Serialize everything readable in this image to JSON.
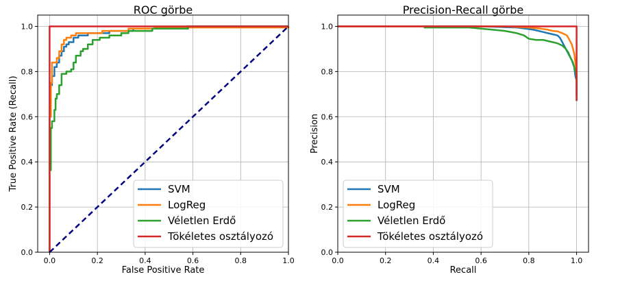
{
  "chart_data": [
    {
      "type": "line",
      "title": "ROC görbe",
      "xlabel": "False Positive Rate",
      "ylabel": "True Positive Rate (Recall)",
      "xlim": [
        -0.05,
        1.0
      ],
      "ylim": [
        0,
        1.05
      ],
      "xticks": [
        "0.0",
        "0.2",
        "0.4",
        "0.6",
        "0.8",
        "1.0"
      ],
      "yticks": [
        "0.0",
        "0.2",
        "0.4",
        "0.6",
        "0.8",
        "1.0"
      ],
      "grid": true,
      "legend_position": "lower-right",
      "series": [
        {
          "name": "SVM",
          "color": "#1f77b4",
          "points": [
            [
              0,
              0
            ],
            [
              0,
              0.6
            ],
            [
              0.005,
              0.6
            ],
            [
              0.005,
              0.74
            ],
            [
              0.01,
              0.74
            ],
            [
              0.01,
              0.78
            ],
            [
              0.02,
              0.78
            ],
            [
              0.02,
              0.82
            ],
            [
              0.03,
              0.82
            ],
            [
              0.03,
              0.84
            ],
            [
              0.04,
              0.84
            ],
            [
              0.04,
              0.87
            ],
            [
              0.05,
              0.87
            ],
            [
              0.05,
              0.89
            ],
            [
              0.06,
              0.89
            ],
            [
              0.06,
              0.91
            ],
            [
              0.07,
              0.91
            ],
            [
              0.07,
              0.92
            ],
            [
              0.08,
              0.92
            ],
            [
              0.08,
              0.93
            ],
            [
              0.1,
              0.93
            ],
            [
              0.1,
              0.95
            ],
            [
              0.12,
              0.95
            ],
            [
              0.12,
              0.96
            ],
            [
              0.16,
              0.96
            ],
            [
              0.16,
              0.97
            ],
            [
              0.25,
              0.97
            ],
            [
              0.25,
              0.98
            ],
            [
              0.35,
              0.98
            ],
            [
              0.35,
              0.99
            ],
            [
              0.57,
              0.99
            ],
            [
              0.57,
              1.0
            ],
            [
              1.0,
              1.0
            ]
          ]
        },
        {
          "name": "LogReg",
          "color": "#ff7f0e",
          "points": [
            [
              0,
              0
            ],
            [
              0,
              0.6
            ],
            [
              0.005,
              0.6
            ],
            [
              0.005,
              0.75
            ],
            [
              0.01,
              0.75
            ],
            [
              0.01,
              0.84
            ],
            [
              0.03,
              0.84
            ],
            [
              0.03,
              0.86
            ],
            [
              0.04,
              0.86
            ],
            [
              0.04,
              0.89
            ],
            [
              0.05,
              0.89
            ],
            [
              0.05,
              0.92
            ],
            [
              0.06,
              0.92
            ],
            [
              0.06,
              0.94
            ],
            [
              0.07,
              0.94
            ],
            [
              0.07,
              0.95
            ],
            [
              0.09,
              0.95
            ],
            [
              0.09,
              0.96
            ],
            [
              0.11,
              0.96
            ],
            [
              0.11,
              0.97
            ],
            [
              0.22,
              0.97
            ],
            [
              0.22,
              0.98
            ],
            [
              0.33,
              0.98
            ],
            [
              0.33,
              0.99
            ],
            [
              0.44,
              0.99
            ],
            [
              0.44,
              0.995
            ],
            [
              1.0,
              0.995
            ],
            [
              1.0,
              1.0
            ]
          ]
        },
        {
          "name": "Véletlen Erdő",
          "color": "#2ca02c",
          "points": [
            [
              0.005,
              0.36
            ],
            [
              0.005,
              0.55
            ],
            [
              0.01,
              0.55
            ],
            [
              0.01,
              0.58
            ],
            [
              0.02,
              0.58
            ],
            [
              0.02,
              0.63
            ],
            [
              0.025,
              0.63
            ],
            [
              0.025,
              0.68
            ],
            [
              0.03,
              0.68
            ],
            [
              0.03,
              0.7
            ],
            [
              0.04,
              0.7
            ],
            [
              0.04,
              0.74
            ],
            [
              0.05,
              0.74
            ],
            [
              0.05,
              0.79
            ],
            [
              0.07,
              0.79
            ],
            [
              0.07,
              0.8
            ],
            [
              0.09,
              0.8
            ],
            [
              0.09,
              0.81
            ],
            [
              0.1,
              0.81
            ],
            [
              0.1,
              0.84
            ],
            [
              0.11,
              0.84
            ],
            [
              0.11,
              0.87
            ],
            [
              0.13,
              0.87
            ],
            [
              0.13,
              0.89
            ],
            [
              0.14,
              0.89
            ],
            [
              0.14,
              0.9
            ],
            [
              0.16,
              0.9
            ],
            [
              0.16,
              0.92
            ],
            [
              0.18,
              0.92
            ],
            [
              0.18,
              0.94
            ],
            [
              0.21,
              0.94
            ],
            [
              0.21,
              0.95
            ],
            [
              0.25,
              0.95
            ],
            [
              0.25,
              0.96
            ],
            [
              0.3,
              0.96
            ],
            [
              0.3,
              0.97
            ],
            [
              0.33,
              0.97
            ],
            [
              0.33,
              0.98
            ],
            [
              0.43,
              0.98
            ],
            [
              0.43,
              0.99
            ],
            [
              0.58,
              0.99
            ],
            [
              0.58,
              1.0
            ],
            [
              1.0,
              1.0
            ]
          ]
        },
        {
          "name": "Tökéletes osztályozó",
          "color": "#d62728",
          "points": [
            [
              0,
              0
            ],
            [
              0,
              1
            ],
            [
              1,
              1
            ]
          ]
        },
        {
          "name": "",
          "color": "#000080",
          "dashed": true,
          "points": [
            [
              0,
              0
            ],
            [
              1,
              1
            ]
          ]
        }
      ]
    },
    {
      "type": "line",
      "title": "Precision-Recall görbe",
      "xlabel": "Recall",
      "ylabel": "Precision",
      "xlim": [
        0,
        1.05
      ],
      "ylim": [
        0,
        1.05
      ],
      "xticks": [
        "0.0",
        "0.2",
        "0.4",
        "0.6",
        "0.8",
        "1.0"
      ],
      "yticks": [
        "0.0",
        "0.2",
        "0.4",
        "0.6",
        "0.8",
        "1.0"
      ],
      "grid": true,
      "legend_position": "lower-left",
      "series": [
        {
          "name": "SVM",
          "color": "#1f77b4",
          "points": [
            [
              0,
              1.0
            ],
            [
              0.6,
              1.0
            ],
            [
              0.75,
              0.995
            ],
            [
              0.82,
              0.985
            ],
            [
              0.86,
              0.975
            ],
            [
              0.88,
              0.97
            ],
            [
              0.9,
              0.965
            ],
            [
              0.92,
              0.96
            ],
            [
              0.93,
              0.95
            ],
            [
              0.94,
              0.93
            ],
            [
              0.95,
              0.91
            ],
            [
              0.96,
              0.89
            ],
            [
              0.97,
              0.87
            ],
            [
              0.98,
              0.85
            ],
            [
              0.99,
              0.82
            ],
            [
              0.995,
              0.78
            ],
            [
              1.0,
              0.76
            ],
            [
              1.0,
              0.67
            ]
          ]
        },
        {
          "name": "LogReg",
          "color": "#ff7f0e",
          "points": [
            [
              0,
              1.0
            ],
            [
              0.7,
              1.0
            ],
            [
              0.8,
              0.995
            ],
            [
              0.85,
              0.99
            ],
            [
              0.88,
              0.985
            ],
            [
              0.9,
              0.98
            ],
            [
              0.92,
              0.978
            ],
            [
              0.94,
              0.97
            ],
            [
              0.96,
              0.96
            ],
            [
              0.97,
              0.94
            ],
            [
              0.98,
              0.92
            ],
            [
              0.99,
              0.88
            ],
            [
              0.995,
              0.84
            ],
            [
              1.0,
              0.8
            ],
            [
              1.0,
              0.69
            ]
          ]
        },
        {
          "name": "Véletlen Erdő",
          "color": "#2ca02c",
          "points": [
            [
              0.36,
              0.995
            ],
            [
              0.45,
              0.995
            ],
            [
              0.55,
              0.995
            ],
            [
              0.6,
              0.99
            ],
            [
              0.65,
              0.985
            ],
            [
              0.7,
              0.98
            ],
            [
              0.75,
              0.97
            ],
            [
              0.78,
              0.96
            ],
            [
              0.8,
              0.945
            ],
            [
              0.83,
              0.94
            ],
            [
              0.86,
              0.94
            ],
            [
              0.88,
              0.935
            ],
            [
              0.9,
              0.93
            ],
            [
              0.92,
              0.925
            ],
            [
              0.94,
              0.915
            ],
            [
              0.955,
              0.9
            ],
            [
              0.965,
              0.885
            ],
            [
              0.975,
              0.86
            ],
            [
              0.985,
              0.84
            ],
            [
              0.99,
              0.82
            ],
            [
              0.995,
              0.8
            ],
            [
              1.0,
              0.78
            ],
            [
              1.0,
              0.69
            ]
          ]
        },
        {
          "name": "Tökéletes osztályozó",
          "color": "#d62728",
          "points": [
            [
              0,
              1.0
            ],
            [
              1,
              1.0
            ],
            [
              1,
              0.67
            ]
          ]
        }
      ]
    }
  ]
}
